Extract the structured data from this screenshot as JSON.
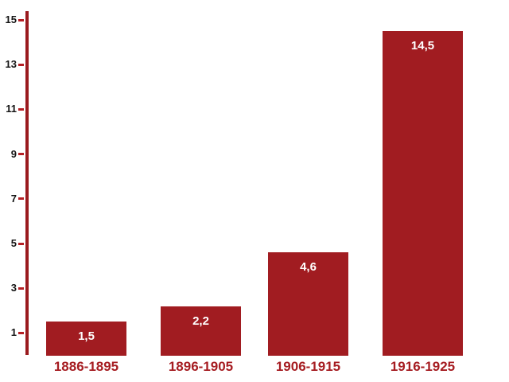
{
  "chart_data": {
    "type": "bar",
    "title": "",
    "xlabel": "",
    "ylabel": "",
    "categories": [
      "1886-1895",
      "1896-1905",
      "1906-1915",
      "1916-1925"
    ],
    "values": [
      1.5,
      2.2,
      4.6,
      14.5
    ],
    "value_labels": [
      "1,5",
      "2,2",
      "4,6",
      "14,5"
    ],
    "y_ticks": [
      1,
      3,
      5,
      7,
      9,
      11,
      13,
      15
    ],
    "ylim": [
      0,
      15.4
    ],
    "grid": false,
    "legend_position": "none",
    "decimal_separator": ",",
    "colors": {
      "background": "#FFFFFF",
      "bar_fill": "#A11C21",
      "axis_line": "#9A1A1E",
      "tick_mark": "#B51F24",
      "y_tick_label": "#141414",
      "value_label": "#FFFFFF",
      "category_label": "#A61D22"
    }
  }
}
